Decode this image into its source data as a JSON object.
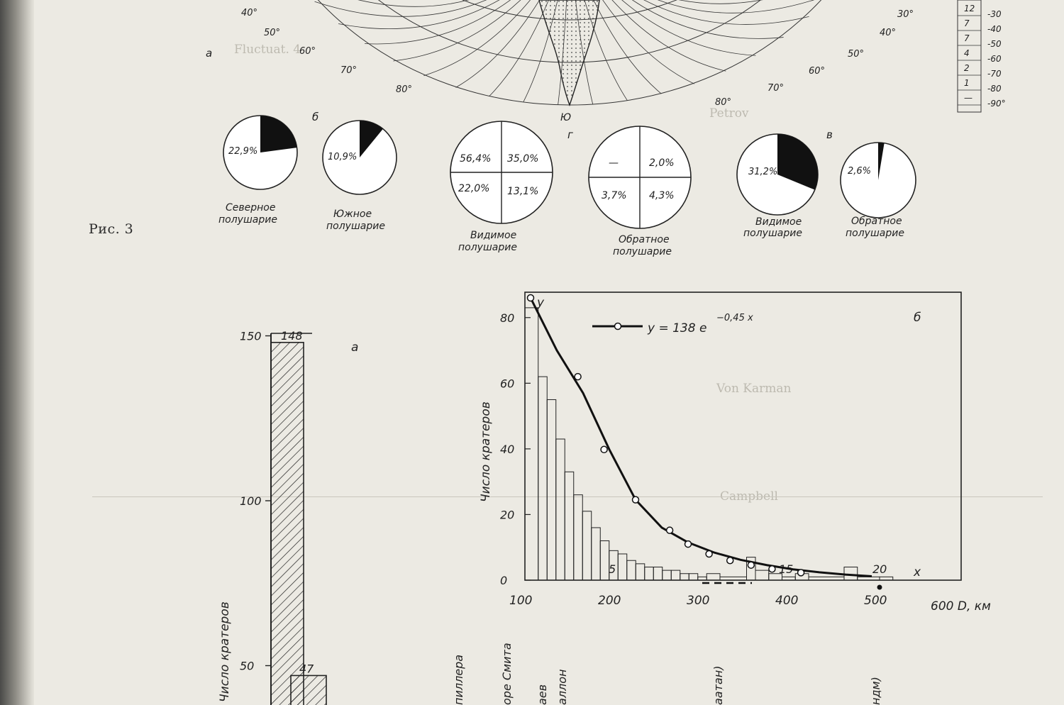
{
  "figure_caption": "Рис. 3",
  "map": {
    "panel_letter": "а",
    "left_lat_labels": [
      "40°",
      "50°",
      "60°",
      "70°",
      "80°"
    ],
    "right_lat_labels": [
      "30°",
      "40°",
      "50°",
      "60°",
      "70°",
      "80°"
    ],
    "pole_label": "Ю",
    "legend_numbers": [
      "12",
      "7",
      "7",
      "4",
      "2",
      "1",
      "—"
    ],
    "legend_lats": [
      "-30",
      "-40",
      "-50",
      "-60",
      "-70",
      "-80",
      "-90°"
    ]
  },
  "pies": {
    "panel_b": "б",
    "panel_g": "г",
    "panel_v": "в",
    "northern": {
      "value": "22,9%",
      "fraction": 0.229,
      "label_line1": "Северное",
      "label_line2": "полушарие"
    },
    "southern": {
      "value": "10,9%",
      "fraction": 0.109,
      "label_line1": "Южное",
      "label_line2": "полушарие"
    },
    "visible_quad": {
      "tl": "56,4%",
      "tr": "35,0%",
      "bl": "22,0%",
      "br": "13,1%",
      "label_line1": "Видимое",
      "label_line2": "полушарие"
    },
    "far_quad": {
      "tl": "—",
      "tr": "2,0%",
      "bl": "3,7%",
      "br": "4,3%",
      "label_line1": "Обратное",
      "label_line2": "полушарие"
    },
    "visible": {
      "value": "31,2%",
      "fraction": 0.312,
      "label_line1": "Видимое",
      "label_line2": "полушарие"
    },
    "far": {
      "value": "2,6%",
      "fraction": 0.026,
      "label_line1": "Обратное",
      "label_line2": "полушарие"
    }
  },
  "chart_data": [
    {
      "type": "bar",
      "panel": "а",
      "ylabel": "Число кратеров",
      "yticks": [
        50,
        100,
        150
      ],
      "values": [
        148,
        47
      ],
      "value_labels": [
        "148",
        "47"
      ]
    },
    {
      "type": "line",
      "panel": "б",
      "formula": "y = 138 e",
      "formula_exp": "−0,45 x",
      "ylabel": "Число кратеров",
      "y_axis_letter": "y",
      "x_axis_letter": "x",
      "xlabel": "600 D, км",
      "xticks": [
        100,
        200,
        300,
        400,
        500
      ],
      "yticks": [
        0,
        20,
        40,
        60,
        80
      ],
      "xticks2": [
        5,
        15,
        20
      ],
      "ylim": [
        0,
        86
      ],
      "xlim": [
        100,
        610
      ],
      "curve_x": [
        0,
        1,
        2,
        3,
        4,
        5,
        6,
        7,
        8,
        9,
        10,
        11,
        12,
        13
      ],
      "curve_y": [
        86,
        70,
        57,
        39.8,
        24.5,
        16,
        11.5,
        8.4,
        6.2,
        4.6,
        3.3,
        2.4,
        1.7,
        1.2
      ],
      "points_x": [
        0,
        1.8,
        2.8,
        4,
        5.3,
        6,
        6.8,
        7.6,
        8.4,
        9.2,
        10.3
      ],
      "points_y": [
        86,
        62,
        39.8,
        24.5,
        15.2,
        11,
        8,
        6,
        4.6,
        3.4,
        2.3
      ],
      "histogram_D": [
        100,
        115,
        125,
        135,
        145,
        155,
        165,
        175,
        185,
        195,
        205,
        215,
        225,
        235,
        245,
        255,
        265,
        275,
        285,
        295,
        305,
        320,
        350,
        360,
        375,
        390,
        405,
        420,
        460,
        475,
        500
      ],
      "histogram_n": [
        83,
        62,
        55,
        43,
        33,
        26,
        21,
        16,
        12,
        9,
        8,
        6,
        5,
        4,
        4,
        3,
        3,
        2,
        2,
        1,
        2,
        1,
        7,
        3,
        2,
        1,
        2,
        1,
        4,
        1,
        1
      ]
    }
  ],
  "bottom_labels": [
    "пиллера",
    "оре Смита",
    "аллон",
    "аатан)",
    "ндм)",
    "аев"
  ]
}
